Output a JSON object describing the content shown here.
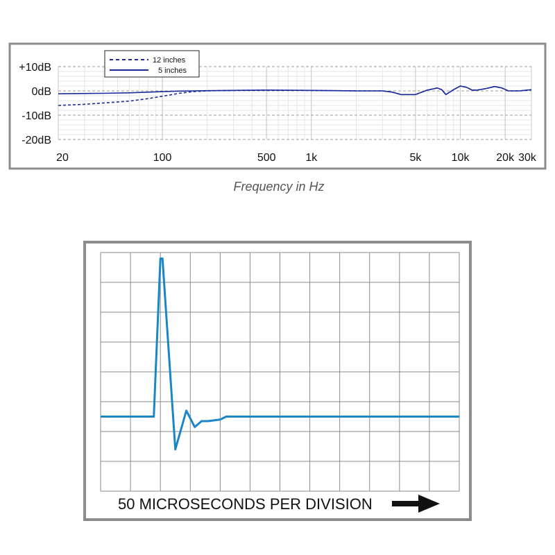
{
  "chart_data": [
    {
      "type": "line",
      "xscale": "log",
      "xlim": [
        20,
        30000
      ],
      "ylim": [
        -20,
        10
      ],
      "xticks": [
        20,
        100,
        500,
        1000,
        5000,
        10000,
        20000,
        30000
      ],
      "xtick_labels": [
        "20",
        "100",
        "500",
        "1k",
        "5k",
        "10k",
        "20k",
        "30k"
      ],
      "yticks": [
        10,
        0,
        -10,
        -20
      ],
      "ytick_labels": [
        "+10dB",
        "0dB",
        "-10dB",
        "-20dB"
      ],
      "xlabel": "Frequency in Hz",
      "ylabel": "",
      "grid": true,
      "legend": "top-left",
      "series": [
        {
          "name": "12 inches",
          "style": "dashed",
          "color": "#1a2a9a",
          "x": [
            20,
            30,
            40,
            60,
            80,
            100,
            130,
            160,
            200,
            300,
            500,
            1000,
            2000,
            3000,
            3500,
            4000,
            5000,
            6000,
            7000,
            7500,
            8000,
            9000,
            10000,
            11000,
            12000,
            13000,
            15000,
            17000,
            19000,
            21000,
            25000,
            30000
          ],
          "y": [
            -6,
            -5.5,
            -5,
            -4.2,
            -3.2,
            -2.2,
            -1,
            -0.3,
            0,
            0.2,
            0.3,
            0.2,
            0,
            0,
            -0.5,
            -1.5,
            -1.5,
            0.3,
            1.2,
            0.5,
            -1.5,
            0.5,
            2,
            1.5,
            0.3,
            0.3,
            1,
            1.8,
            1.2,
            0,
            0,
            0.5
          ]
        },
        {
          "name": "5 inches",
          "style": "solid",
          "color": "#1a2a9a",
          "x": [
            20,
            40,
            60,
            80,
            100,
            130,
            160,
            200,
            300,
            500,
            1000,
            2000,
            3000,
            3500,
            4000,
            5000,
            6000,
            7000,
            7500,
            8000,
            9000,
            10000,
            11000,
            12000,
            13000,
            15000,
            17000,
            19000,
            21000,
            25000,
            30000
          ],
          "y": [
            -1.2,
            -1,
            -0.8,
            -0.5,
            -0.3,
            -0.1,
            0,
            0.1,
            0.2,
            0.3,
            0.2,
            0,
            0,
            -0.5,
            -1.5,
            -1.5,
            0.3,
            1.2,
            0.5,
            -1.5,
            0.5,
            2,
            1.5,
            0.3,
            0.3,
            1,
            1.8,
            1.2,
            0,
            0,
            0.5
          ]
        }
      ]
    },
    {
      "type": "line",
      "grid": true,
      "grid_divisions": {
        "x": 12,
        "y": 8
      },
      "xlabel": "50 MICROSECONDS PER DIVISION",
      "ylabel": "",
      "xlim": [
        0,
        12
      ],
      "ylim": [
        -2.5,
        5.5
      ],
      "series": [
        {
          "color": "#1a86c8",
          "x": [
            0,
            1.78,
            2.0,
            2.07,
            2.5,
            2.87,
            3.15,
            3.38,
            3.6,
            4.0,
            4.2,
            12
          ],
          "y": [
            0,
            0,
            5.3,
            5.3,
            -1.1,
            0.2,
            -0.35,
            -0.15,
            -0.15,
            -0.1,
            0,
            0
          ]
        }
      ]
    }
  ]
}
